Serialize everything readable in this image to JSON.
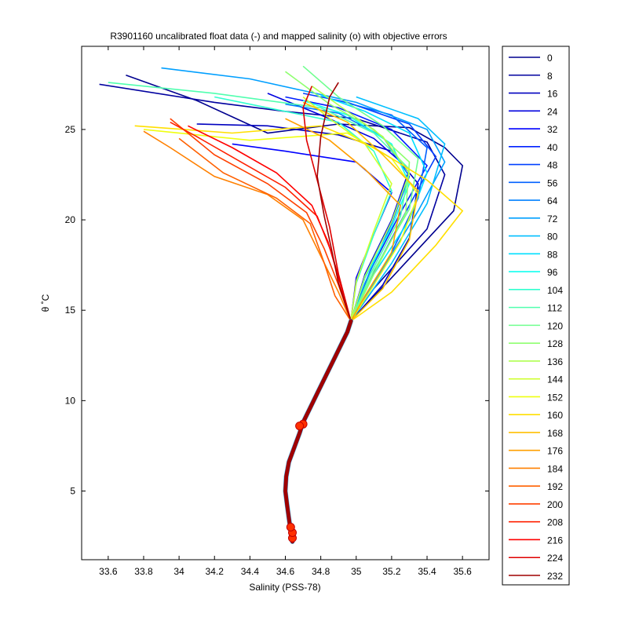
{
  "chart_data": {
    "type": "line",
    "title": "R3901160 uncalibrated float data (-) and mapped salinity (o) with objective errors",
    "xlabel": "Salinity (PSS-78)",
    "ylabel": "θ ˚C",
    "xlim": [
      33.45,
      35.75
    ],
    "ylim": [
      1.2,
      29.6
    ],
    "xticks": [
      33.6,
      33.8,
      34.0,
      34.2,
      34.4,
      34.6,
      34.8,
      35.0,
      35.2,
      35.4,
      35.6
    ],
    "xtick_labels": [
      "33.6",
      "33.8",
      "34",
      "34.2",
      "34.4",
      "34.6",
      "34.8",
      "35",
      "35.2",
      "35.4",
      "35.6"
    ],
    "yticks": [
      5,
      10,
      15,
      20,
      25
    ],
    "ytick_labels": [
      "5",
      "10",
      "15",
      "20",
      "25"
    ],
    "grid": false,
    "legend_position": "right",
    "deep_curve": [
      [
        34.64,
        2.2
      ],
      [
        34.63,
        2.8
      ],
      [
        34.62,
        3.5
      ],
      [
        34.61,
        4.2
      ],
      [
        34.6,
        5.0
      ],
      [
        34.605,
        5.8
      ],
      [
        34.62,
        6.6
      ],
      [
        34.65,
        7.4
      ],
      [
        34.68,
        8.2
      ],
      [
        34.7,
        8.8
      ],
      [
        34.74,
        9.6
      ],
      [
        34.78,
        10.4
      ],
      [
        34.83,
        11.4
      ],
      [
        34.88,
        12.4
      ],
      [
        34.92,
        13.2
      ],
      [
        34.95,
        13.8
      ],
      [
        34.97,
        14.4
      ]
    ],
    "mapped_markers": [
      [
        34.7,
        8.7
      ],
      [
        34.68,
        8.6
      ],
      [
        34.64,
        2.4
      ],
      [
        34.64,
        2.7
      ],
      [
        34.63,
        3.0
      ]
    ],
    "series": [
      {
        "name": "0",
        "color": "#00008f",
        "values": [
          [
            34.97,
            14.4
          ],
          [
            35.2,
            16.8
          ],
          [
            35.55,
            20.5
          ],
          [
            35.6,
            23.0
          ],
          [
            35.5,
            24.0
          ],
          [
            35.3,
            25.1
          ],
          [
            34.9,
            25.3
          ],
          [
            34.5,
            24.8
          ],
          [
            34.1,
            26.6
          ],
          [
            33.7,
            28.0
          ]
        ]
      },
      {
        "name": "8",
        "color": "#00009f",
        "values": [
          [
            34.97,
            14.4
          ],
          [
            35.1,
            16.2
          ],
          [
            35.4,
            19.5
          ],
          [
            35.5,
            22.5
          ],
          [
            35.4,
            24.3
          ],
          [
            35.0,
            25.6
          ],
          [
            34.6,
            26.0
          ],
          [
            34.2,
            26.5
          ],
          [
            33.55,
            27.5
          ]
        ]
      },
      {
        "name": "16",
        "color": "#0000bf",
        "values": [
          [
            34.97,
            14.4
          ],
          [
            35.15,
            16.4
          ],
          [
            35.3,
            19.0
          ],
          [
            35.35,
            22.0
          ],
          [
            35.2,
            23.8
          ],
          [
            34.9,
            24.7
          ],
          [
            34.5,
            25.2
          ],
          [
            34.1,
            25.3
          ]
        ]
      },
      {
        "name": "24",
        "color": "#0000df",
        "values": [
          [
            34.97,
            14.4
          ],
          [
            35.05,
            17.0
          ],
          [
            35.2,
            20.0
          ],
          [
            35.3,
            22.8
          ],
          [
            35.1,
            24.5
          ],
          [
            34.8,
            25.8
          ],
          [
            34.5,
            27.0
          ]
        ]
      },
      {
        "name": "32",
        "color": "#0000ff",
        "values": [
          [
            34.97,
            14.4
          ],
          [
            35.0,
            16.8
          ],
          [
            35.1,
            19.2
          ],
          [
            35.2,
            21.5
          ],
          [
            35.0,
            23.2
          ],
          [
            34.6,
            23.8
          ],
          [
            34.3,
            24.2
          ]
        ]
      },
      {
        "name": "40",
        "color": "#0020ff",
        "values": [
          [
            34.97,
            14.4
          ],
          [
            35.08,
            17.2
          ],
          [
            35.25,
            20.4
          ],
          [
            35.4,
            23.0
          ],
          [
            35.2,
            25.0
          ],
          [
            34.9,
            26.2
          ],
          [
            34.6,
            26.8
          ]
        ]
      },
      {
        "name": "48",
        "color": "#0040ff",
        "values": [
          [
            34.97,
            14.4
          ],
          [
            35.12,
            17.5
          ],
          [
            35.3,
            20.8
          ],
          [
            35.45,
            23.5
          ],
          [
            35.3,
            25.3
          ],
          [
            34.95,
            26.5
          ],
          [
            34.7,
            27.0
          ]
        ]
      },
      {
        "name": "56",
        "color": "#0060ff",
        "values": [
          [
            34.97,
            14.4
          ],
          [
            35.18,
            17.8
          ],
          [
            35.35,
            21.2
          ],
          [
            35.4,
            24.0
          ],
          [
            35.2,
            25.8
          ],
          [
            34.9,
            26.6
          ]
        ]
      },
      {
        "name": "64",
        "color": "#0080ff",
        "values": [
          [
            34.97,
            14.4
          ],
          [
            35.05,
            16.5
          ],
          [
            35.2,
            19.8
          ],
          [
            35.3,
            22.4
          ],
          [
            35.15,
            24.6
          ],
          [
            34.9,
            25.9
          ],
          [
            34.6,
            26.4
          ]
        ]
      },
      {
        "name": "72",
        "color": "#009fff",
        "values": [
          [
            34.97,
            14.4
          ],
          [
            35.15,
            17.3
          ],
          [
            35.35,
            20.5
          ],
          [
            35.5,
            23.2
          ],
          [
            35.4,
            25.0
          ],
          [
            35.0,
            26.5
          ],
          [
            34.4,
            27.8
          ],
          [
            33.9,
            28.4
          ]
        ]
      },
      {
        "name": "80",
        "color": "#00bfff",
        "values": [
          [
            34.97,
            14.4
          ],
          [
            35.2,
            17.6
          ],
          [
            35.4,
            20.9
          ],
          [
            35.5,
            24.2
          ],
          [
            35.35,
            25.6
          ],
          [
            35.0,
            26.8
          ]
        ]
      },
      {
        "name": "88",
        "color": "#00dfff",
        "values": [
          [
            34.97,
            14.4
          ],
          [
            35.1,
            17.0
          ],
          [
            35.3,
            20.0
          ],
          [
            35.4,
            22.6
          ],
          [
            35.3,
            24.8
          ],
          [
            35.05,
            26.0
          ],
          [
            34.8,
            26.9
          ]
        ]
      },
      {
        "name": "96",
        "color": "#10ffef",
        "values": [
          [
            34.97,
            14.4
          ],
          [
            35.05,
            16.8
          ],
          [
            35.2,
            19.6
          ],
          [
            35.3,
            22.0
          ],
          [
            35.2,
            24.2
          ],
          [
            34.95,
            25.8
          ],
          [
            34.7,
            26.6
          ]
        ]
      },
      {
        "name": "104",
        "color": "#30ffcf",
        "values": [
          [
            34.97,
            14.4
          ],
          [
            35.0,
            16.5
          ],
          [
            35.1,
            19.2
          ],
          [
            35.2,
            21.6
          ],
          [
            35.1,
            23.8
          ],
          [
            34.9,
            25.4
          ],
          [
            34.5,
            26.2
          ],
          [
            34.2,
            26.8
          ]
        ]
      },
      {
        "name": "112",
        "color": "#50ffaf",
        "values": [
          [
            34.97,
            14.4
          ],
          [
            35.08,
            17.0
          ],
          [
            35.25,
            20.2
          ],
          [
            35.3,
            22.8
          ],
          [
            35.1,
            24.8
          ],
          [
            34.8,
            26.2
          ],
          [
            34.2,
            27.0
          ],
          [
            33.6,
            27.6
          ]
        ]
      },
      {
        "name": "120",
        "color": "#70ff8f",
        "values": [
          [
            34.97,
            14.4
          ],
          [
            35.1,
            17.2
          ],
          [
            35.3,
            20.6
          ],
          [
            35.35,
            23.4
          ],
          [
            35.15,
            25.2
          ],
          [
            34.9,
            26.8
          ],
          [
            34.7,
            28.5
          ]
        ]
      },
      {
        "name": "128",
        "color": "#8fff70",
        "values": [
          [
            34.97,
            14.4
          ],
          [
            35.12,
            17.4
          ],
          [
            35.28,
            20.4
          ],
          [
            35.3,
            23.2
          ],
          [
            35.1,
            25.0
          ],
          [
            34.85,
            26.4
          ],
          [
            34.6,
            28.2
          ]
        ]
      },
      {
        "name": "136",
        "color": "#afff50",
        "values": [
          [
            34.97,
            14.4
          ],
          [
            35.05,
            16.9
          ],
          [
            35.2,
            19.9
          ],
          [
            35.3,
            22.6
          ],
          [
            35.15,
            24.6
          ],
          [
            34.95,
            26.0
          ],
          [
            34.75,
            27.4
          ]
        ]
      },
      {
        "name": "144",
        "color": "#cfff30",
        "values": [
          [
            34.97,
            14.4
          ],
          [
            35.0,
            16.6
          ],
          [
            35.1,
            19.4
          ],
          [
            35.2,
            22.0
          ],
          [
            35.05,
            24.2
          ],
          [
            34.85,
            25.6
          ],
          [
            34.7,
            26.8
          ]
        ]
      },
      {
        "name": "152",
        "color": "#efff10",
        "values": [
          [
            34.97,
            14.4
          ],
          [
            35.1,
            16.4
          ],
          [
            35.25,
            18.8
          ],
          [
            35.35,
            21.4
          ],
          [
            35.2,
            23.4
          ],
          [
            34.95,
            24.8
          ],
          [
            34.4,
            24.4
          ],
          [
            33.8,
            25.0
          ]
        ]
      },
      {
        "name": "160",
        "color": "#ffdf00",
        "values": [
          [
            34.97,
            14.4
          ],
          [
            35.2,
            16.0
          ],
          [
            35.45,
            18.6
          ],
          [
            35.6,
            20.5
          ],
          [
            35.4,
            22.2
          ],
          [
            35.1,
            24.0
          ],
          [
            34.8,
            25.2
          ],
          [
            34.3,
            24.8
          ],
          [
            33.75,
            25.2
          ]
        ]
      },
      {
        "name": "168",
        "color": "#ffbf00",
        "values": [
          [
            34.97,
            14.4
          ],
          [
            35.15,
            16.2
          ],
          [
            35.3,
            18.9
          ],
          [
            35.35,
            21.6
          ],
          [
            35.15,
            23.6
          ],
          [
            34.95,
            25.4
          ],
          [
            34.7,
            26.5
          ]
        ]
      },
      {
        "name": "176",
        "color": "#ff9f00",
        "values": [
          [
            34.97,
            14.4
          ],
          [
            35.05,
            15.8
          ],
          [
            35.2,
            18.2
          ],
          [
            35.25,
            20.8
          ],
          [
            35.05,
            22.8
          ],
          [
            34.85,
            24.4
          ],
          [
            34.6,
            25.6
          ]
        ]
      },
      {
        "name": "184",
        "color": "#ff8000",
        "values": [
          [
            34.97,
            14.4
          ],
          [
            34.9,
            16.0
          ],
          [
            34.8,
            18.0
          ],
          [
            34.7,
            20.0
          ],
          [
            34.5,
            21.4
          ],
          [
            34.2,
            22.4
          ],
          [
            33.95,
            24.0
          ],
          [
            33.8,
            24.9
          ]
        ]
      },
      {
        "name": "192",
        "color": "#ff6000",
        "values": [
          [
            34.97,
            14.4
          ],
          [
            34.88,
            15.8
          ],
          [
            34.82,
            17.6
          ],
          [
            34.74,
            19.8
          ],
          [
            34.55,
            21.2
          ],
          [
            34.25,
            22.6
          ],
          [
            34.0,
            24.5
          ]
        ]
      },
      {
        "name": "200",
        "color": "#ff4000",
        "values": [
          [
            34.97,
            14.4
          ],
          [
            34.9,
            16.4
          ],
          [
            34.82,
            18.4
          ],
          [
            34.72,
            20.4
          ],
          [
            34.5,
            22.0
          ],
          [
            34.2,
            23.6
          ],
          [
            33.95,
            25.6
          ]
        ]
      },
      {
        "name": "208",
        "color": "#ff2000",
        "values": [
          [
            34.97,
            14.4
          ],
          [
            34.92,
            16.2
          ],
          [
            34.86,
            18.2
          ],
          [
            34.78,
            20.2
          ],
          [
            34.6,
            21.8
          ],
          [
            34.35,
            23.2
          ],
          [
            34.1,
            24.6
          ],
          [
            33.95,
            25.4
          ]
        ]
      },
      {
        "name": "216",
        "color": "#ff0000",
        "values": [
          [
            34.97,
            14.4
          ],
          [
            34.9,
            16.8
          ],
          [
            34.84,
            18.8
          ],
          [
            34.75,
            20.8
          ],
          [
            34.55,
            22.6
          ],
          [
            34.3,
            24.0
          ],
          [
            34.05,
            25.2
          ]
        ]
      },
      {
        "name": "224",
        "color": "#df0000",
        "values": [
          [
            34.97,
            14.4
          ],
          [
            34.9,
            17.0
          ],
          [
            34.85,
            19.6
          ],
          [
            34.78,
            22.2
          ],
          [
            34.72,
            24.4
          ],
          [
            34.7,
            26.2
          ],
          [
            34.75,
            27.4
          ]
        ]
      },
      {
        "name": "232",
        "color": "#9f0000",
        "values": [
          [
            34.97,
            14.4
          ],
          [
            34.9,
            16.5
          ],
          [
            34.86,
            18.4
          ],
          [
            34.82,
            20.2
          ],
          [
            34.78,
            22.4
          ],
          [
            34.8,
            24.6
          ],
          [
            34.85,
            26.8
          ],
          [
            34.9,
            27.6
          ]
        ]
      }
    ]
  }
}
